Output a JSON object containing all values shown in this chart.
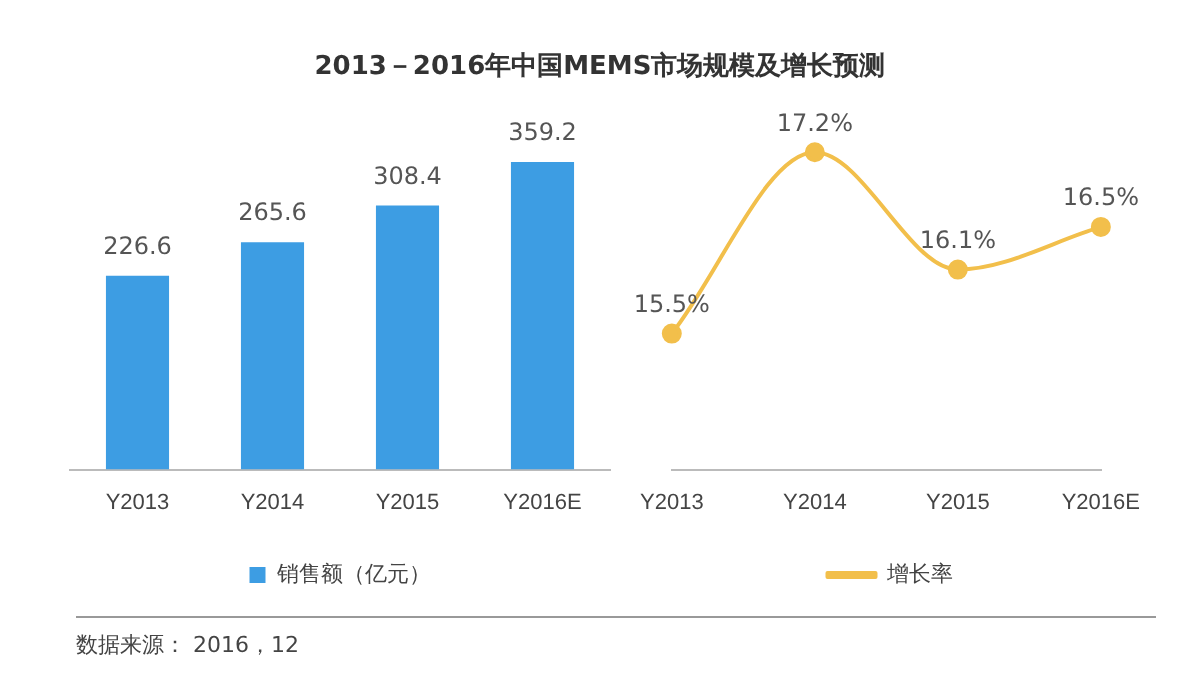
{
  "chart_data": [
    {
      "type": "bar",
      "title": "2013－2016年中国MEMS市场规模及增长预测",
      "categories": [
        "Y2013",
        "Y2014",
        "Y2015",
        "Y2016E"
      ],
      "series": [
        {
          "name": "销售额（亿元）",
          "color": "#3d9de3",
          "values": [
            226.6,
            265.6,
            308.4,
            359.2
          ]
        }
      ],
      "data_labels": true,
      "grid": false,
      "legend": "bottom",
      "tick_labels": "x",
      "annotations": [
        "数据来源： 2016，12"
      ]
    },
    {
      "type": "line",
      "categories": [
        "Y2013",
        "Y2014",
        "Y2015",
        "Y2016E"
      ],
      "series": [
        {
          "name": "增长率",
          "color": "#f2bf4b",
          "values": [
            15.5,
            17.2,
            16.1,
            16.5
          ],
          "value_labels": [
            "15.5%",
            "17.2%",
            "16.1%",
            "16.5%"
          ]
        }
      ],
      "marker": "circle",
      "grid": false,
      "legend": "bottom",
      "tick_labels": "x"
    }
  ]
}
